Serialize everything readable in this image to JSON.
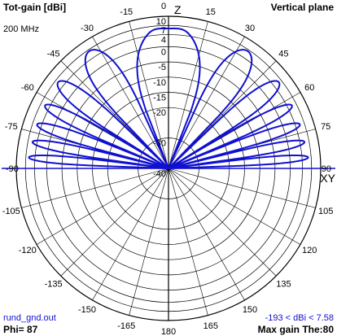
{
  "chart_data": {
    "type": "polar",
    "title": "Tot-gain [dBi]",
    "plane": "Vertical plane",
    "frequency": "200 MHz",
    "file": "rund_gnd.out",
    "phi_label": "Phi= 87",
    "max_gain_label": "Max gain The:80",
    "range_label": "-193 < dBi < 7.58",
    "axis_labels": {
      "z": "Z",
      "xy": "XY"
    },
    "angle_unit": "degrees from zenith (Z)",
    "angle_ticks": [
      0,
      15,
      30,
      45,
      60,
      75,
      90,
      105,
      120,
      135,
      150,
      165,
      180,
      -165,
      -150,
      -135,
      -120,
      -105,
      -90,
      -75,
      -60,
      -45,
      -30,
      -15
    ],
    "radial_ticks": [
      10,
      7,
      4,
      0,
      -5,
      -10,
      -15,
      -20,
      -30,
      -40
    ],
    "radial_unit": "dBi",
    "radial_range": [
      -40,
      10
    ],
    "max_gain_dbi": 7.58,
    "series": [
      {
        "lobes": [
          {
            "from": -88,
            "to": -83,
            "peak_at": -85.5,
            "peak_dbi": 6.0
          },
          {
            "from": -82,
            "to": -76,
            "peak_at": -79.0,
            "peak_dbi": 5.5
          },
          {
            "from": -75,
            "to": -68,
            "peak_at": -71.5,
            "peak_dbi": 5.5
          },
          {
            "from": -67,
            "to": -59,
            "peak_at": -63.0,
            "peak_dbi": 5.5
          },
          {
            "from": -58,
            "to": -46,
            "peak_at": -52.0,
            "peak_dbi": 6.0
          },
          {
            "from": -44,
            "to": -24,
            "peak_at": -34.0,
            "peak_dbi": 6.5
          },
          {
            "from": -22,
            "to": 22,
            "shape": "twin-peak",
            "peak_at": [
              -16,
              16
            ],
            "peak_dbi": 7.3,
            "center_dbi": 6.0
          },
          {
            "from": 24,
            "to": 44,
            "peak_at": 34.0,
            "peak_dbi": 6.5
          },
          {
            "from": 46,
            "to": 58,
            "peak_at": 52.0,
            "peak_dbi": 6.0
          },
          {
            "from": 59,
            "to": 67,
            "peak_at": 63.0,
            "peak_dbi": 5.5
          },
          {
            "from": 68,
            "to": 75,
            "peak_at": 71.5,
            "peak_dbi": 5.5
          },
          {
            "from": 76,
            "to": 82,
            "peak_at": 79.0,
            "peak_dbi": 5.5
          },
          {
            "from": 83,
            "to": 88,
            "peak_at": 85.5,
            "peak_dbi": 6.0
          }
        ],
        "null_dbi": -40,
        "color": "#1010d0"
      }
    ],
    "colors": {
      "grid": "#000000",
      "pattern": "#1010d0",
      "axis": "#1010d0",
      "range_text": "#1010d0",
      "file_text": "#1010d0"
    }
  }
}
